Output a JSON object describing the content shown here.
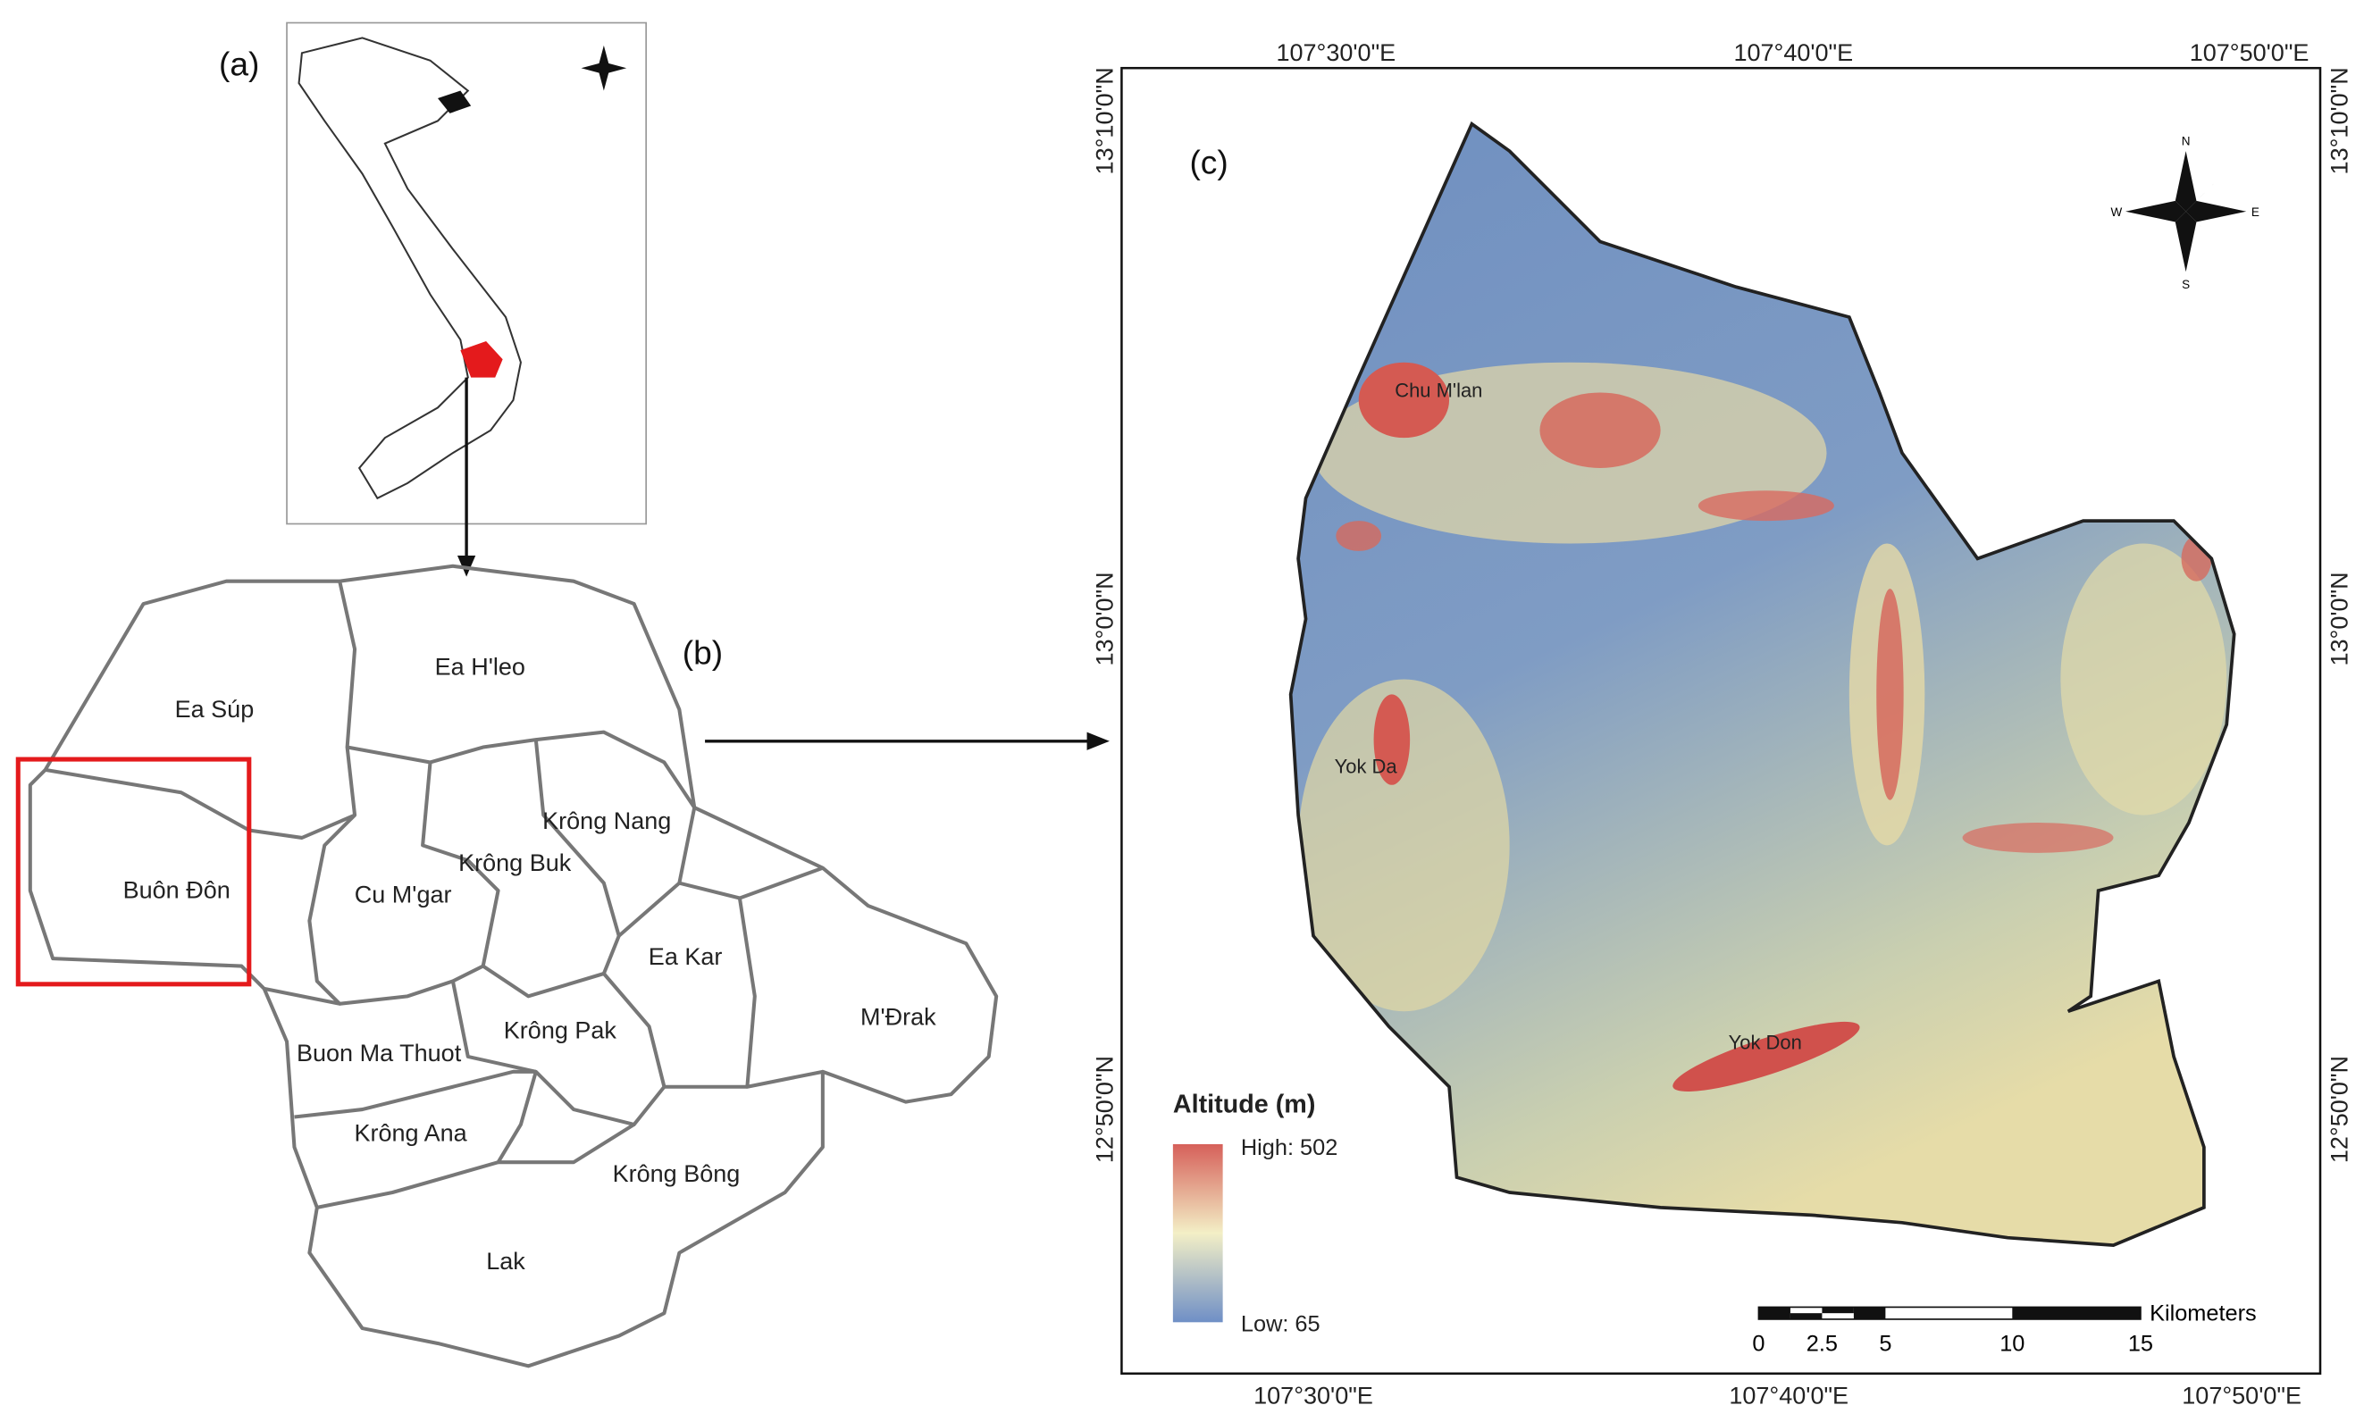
{
  "panels": {
    "a": "(a)",
    "b": "(b)",
    "c": "(c)"
  },
  "districts": [
    "Ea Súp",
    "Ea H'leo",
    "Buôn Đôn",
    "Cu M'gar",
    "Krông Buk",
    "Krông Nang",
    "Ea Kar",
    "M'Đrak",
    "Krông Pak",
    "Buon Ma Thuot",
    "Krông Ana",
    "Krông Bông",
    "Lak"
  ],
  "places": [
    "Chu M'lan",
    "Yok Da",
    "Yok Don"
  ],
  "coordinates": {
    "top": [
      "107°30'0\"E",
      "107°40'0\"E",
      "107°50'0\"E"
    ],
    "bottom": [
      "107°30'0\"E",
      "107°40'0\"E",
      "107°50'0\"E"
    ],
    "left": [
      "13°10'0\"N",
      "13°0'0\"N",
      "12°50'0\"N"
    ],
    "right": [
      "13°10'0\"N",
      "13°0'0\"N",
      "12°50'0\"N"
    ]
  },
  "legend": {
    "title": "Altitude (m)",
    "high": "High: 502",
    "low": "Low: 65"
  },
  "scale_bar": {
    "ticks": [
      "0",
      "2.5",
      "5",
      "10",
      "15"
    ],
    "unit": "Kilometers"
  },
  "compass": {
    "n": "N",
    "e": "E",
    "s": "S",
    "w": "W"
  }
}
